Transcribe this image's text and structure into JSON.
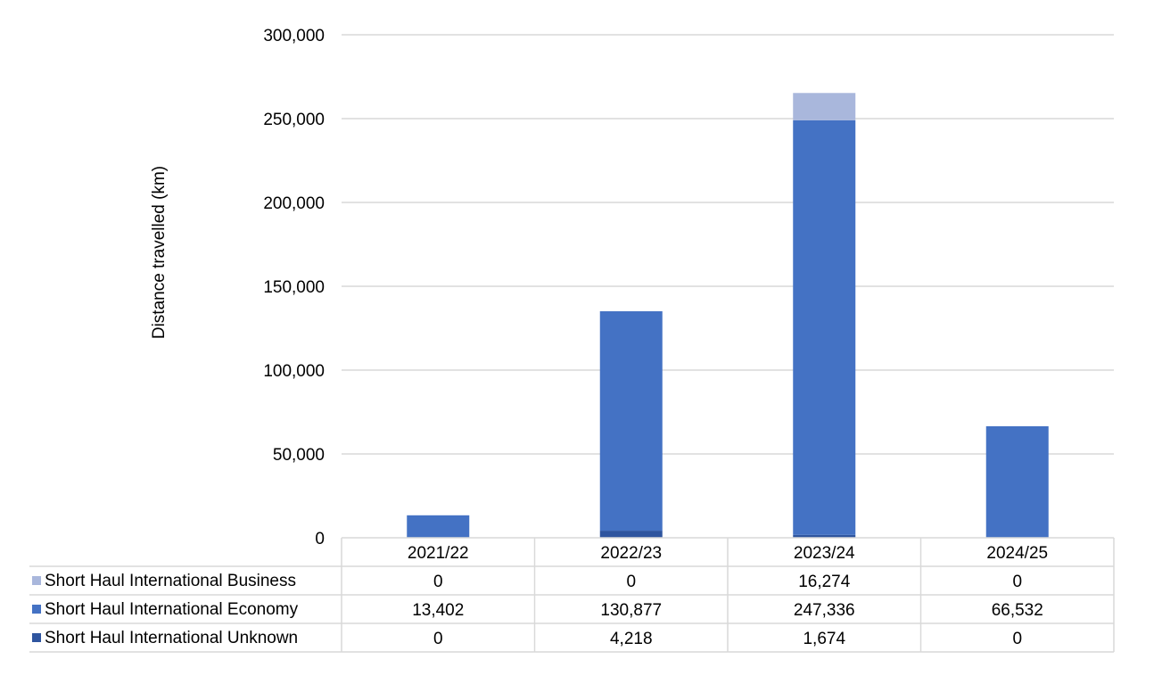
{
  "chart_data": {
    "type": "bar",
    "stacked": true,
    "title": "",
    "xlabel": "",
    "ylabel": "Distance travelled (km)",
    "ylim": [
      0,
      300000
    ],
    "yticks": [
      0,
      50000,
      100000,
      150000,
      200000,
      250000,
      300000
    ],
    "ytick_labels": [
      "0",
      "50,000",
      "100,000",
      "150,000",
      "200,000",
      "250,000",
      "300,000"
    ],
    "grid": true,
    "legend": "data-table-left",
    "categories": [
      "2021/22",
      "2022/23",
      "2023/24",
      "2024/25"
    ],
    "series": [
      {
        "name": "Short Haul International Unknown",
        "values": [
          0,
          4218,
          1674,
          0
        ],
        "labels": [
          "0",
          "4,218",
          "1,674",
          "0"
        ],
        "color": "#2f559f"
      },
      {
        "name": "Short Haul International Economy",
        "values": [
          13402,
          130877,
          247336,
          66532
        ],
        "labels": [
          "13,402",
          "130,877",
          "247,336",
          "66,532"
        ],
        "color": "#4472c4"
      },
      {
        "name": "Short Haul International Business",
        "values": [
          0,
          0,
          16274,
          0
        ],
        "labels": [
          "0",
          "0",
          "16,274",
          "0"
        ],
        "color": "#a9b7dc"
      }
    ],
    "table_order": [
      "Short Haul International Business",
      "Short Haul International Economy",
      "Short Haul International Unknown"
    ]
  }
}
